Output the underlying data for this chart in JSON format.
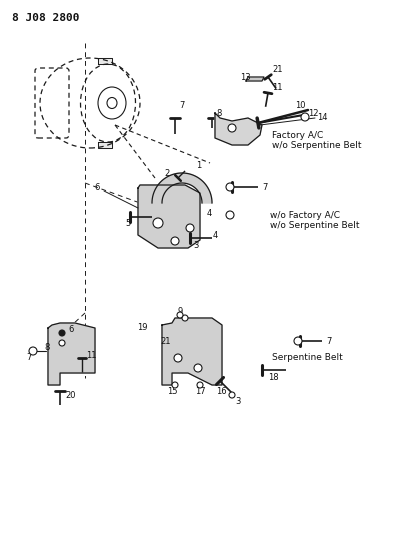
{
  "title": "8 J08 2800",
  "background_color": "#ffffff",
  "lc": "#1a1a1a",
  "tc": "#111111",
  "label1": "Factory A/C\nw/o Serpentine Belt",
  "label2": "w/o Factory A/C\nw/o Serpentine Belt",
  "label3": "Serpentine Belt",
  "fig_width": 3.96,
  "fig_height": 5.33,
  "dpi": 100,
  "font_title": 8,
  "font_label": 6.5,
  "font_num": 6
}
